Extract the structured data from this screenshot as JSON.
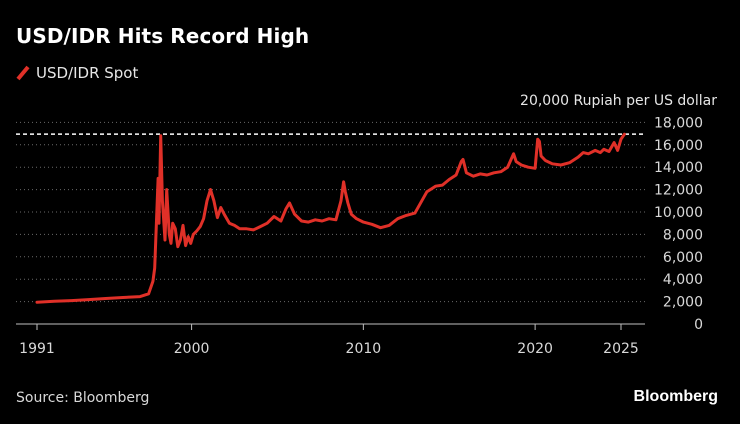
{
  "chart_data": {
    "type": "line",
    "title": "USD/IDR Hits Record High",
    "ylabel": "20,000 Rupiah per US dollar",
    "ylim": [
      0,
      20000
    ],
    "xlim": [
      1991,
      2026.2
    ],
    "grid": true,
    "legend_position": "top-left",
    "y_ticks": [
      0,
      2000,
      4000,
      6000,
      8000,
      10000,
      12000,
      14000,
      16000,
      18000
    ],
    "y_tick_labels": [
      "0",
      "2,000",
      "4,000",
      "6,000",
      "8,000",
      "10,000",
      "12,000",
      "14,000",
      "16,000",
      "18,000"
    ],
    "x_ticks": [
      1991,
      2000,
      2010,
      2020,
      2025
    ],
    "x_tick_labels": [
      "1991",
      "2000",
      "2010",
      "2020",
      "2025"
    ],
    "reference_line": {
      "value": 16950,
      "style": "dashed"
    },
    "series": [
      {
        "name": "USD/IDR Spot",
        "color": "#e03028",
        "x": [
          1991.0,
          1992.0,
          1993.0,
          1994.0,
          1995.0,
          1996.0,
          1997.0,
          1997.5,
          1997.75,
          1997.85,
          1997.95,
          1998.05,
          1998.1,
          1998.2,
          1998.3,
          1998.45,
          1998.55,
          1998.7,
          1998.8,
          1998.9,
          1999.05,
          1999.2,
          1999.35,
          1999.5,
          1999.65,
          1999.8,
          1999.95,
          2000.1,
          2000.3,
          2000.5,
          2000.7,
          2000.9,
          2001.1,
          2001.3,
          2001.5,
          2001.7,
          2001.9,
          2002.2,
          2002.5,
          2002.8,
          2003.2,
          2003.6,
          2004.0,
          2004.4,
          2004.8,
          2005.2,
          2005.5,
          2005.7,
          2006.0,
          2006.4,
          2006.8,
          2007.2,
          2007.6,
          2008.0,
          2008.4,
          2008.7,
          2008.85,
          2008.95,
          2009.1,
          2009.3,
          2009.6,
          2010.0,
          2010.5,
          2011.0,
          2011.5,
          2012.0,
          2012.5,
          2013.0,
          2013.4,
          2013.7,
          2013.9,
          2014.2,
          2014.6,
          2015.0,
          2015.4,
          2015.7,
          2015.8,
          2016.0,
          2016.4,
          2016.8,
          2017.2,
          2017.6,
          2018.0,
          2018.4,
          2018.75,
          2018.9,
          2019.2,
          2019.6,
          2020.0,
          2020.15,
          2020.25,
          2020.35,
          2020.6,
          2021.0,
          2021.5,
          2022.0,
          2022.5,
          2022.8,
          2023.1,
          2023.5,
          2023.8,
          2024.0,
          2024.3,
          2024.6,
          2024.8,
          2025.0,
          2025.2
        ],
        "values": [
          1950,
          2030,
          2090,
          2180,
          2280,
          2370,
          2450,
          2700,
          3800,
          5000,
          9000,
          13000,
          9000,
          16800,
          11000,
          7500,
          12000,
          8000,
          7200,
          9000,
          8500,
          6900,
          7500,
          8800,
          7000,
          7800,
          7200,
          8000,
          8300,
          8700,
          9400,
          11000,
          12000,
          11000,
          9500,
          10400,
          9800,
          9000,
          8800,
          8500,
          8500,
          8400,
          8700,
          9000,
          9600,
          9200,
          10300,
          10800,
          9800,
          9200,
          9100,
          9300,
          9200,
          9400,
          9300,
          11000,
          12700,
          11800,
          10800,
          9800,
          9400,
          9100,
          8900,
          8600,
          8800,
          9400,
          9700,
          9900,
          11000,
          11800,
          12000,
          12300,
          12400,
          12900,
          13300,
          14500,
          14700,
          13500,
          13200,
          13400,
          13300,
          13500,
          13600,
          14000,
          15200,
          14500,
          14200,
          14000,
          13900,
          16500,
          16300,
          15000,
          14600,
          14300,
          14200,
          14400,
          14900,
          15300,
          15200,
          15500,
          15300,
          15600,
          15400,
          16200,
          15500,
          16500,
          16950
        ]
      }
    ]
  },
  "source": "Source: Bloomberg",
  "brand": "Bloomberg"
}
